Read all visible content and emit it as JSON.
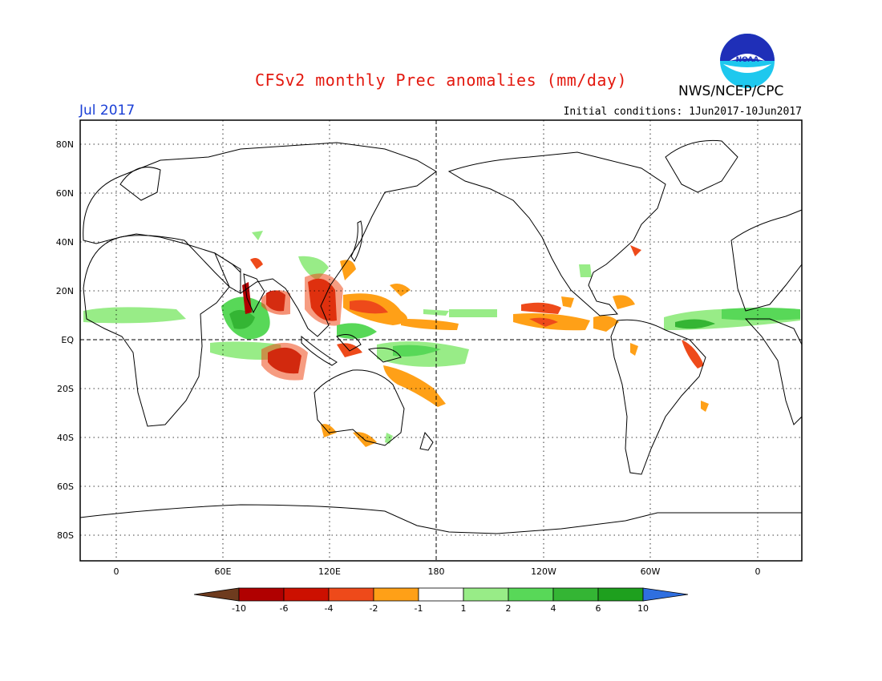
{
  "title": "CFSv2 monthly Prec anomalies (mm/day)",
  "agency": "NWS/NCEP/CPC",
  "logo_text": "NOAA",
  "valid_month": "Jul 2017",
  "initial_conditions": "Initial conditions: 1Jun2017-10Jun2017",
  "lat_ticks": [
    "80N",
    "60N",
    "40N",
    "20N",
    "EQ",
    "20S",
    "40S",
    "60S",
    "80S"
  ],
  "lon_ticks": [
    "0",
    "60E",
    "120E",
    "180",
    "120W",
    "60W",
    "0"
  ],
  "colorbar": {
    "labels": [
      "-10",
      "-6",
      "-4",
      "-2",
      "-1",
      "1",
      "2",
      "4",
      "6",
      "10"
    ],
    "colors": [
      "#6e3b1e",
      "#b00000",
      "#cc1000",
      "#ee4a1a",
      "#ffa017",
      "#ffffff",
      "#98ec87",
      "#58d858",
      "#34b534",
      "#1ea01e",
      "#2f6fe0"
    ]
  }
}
